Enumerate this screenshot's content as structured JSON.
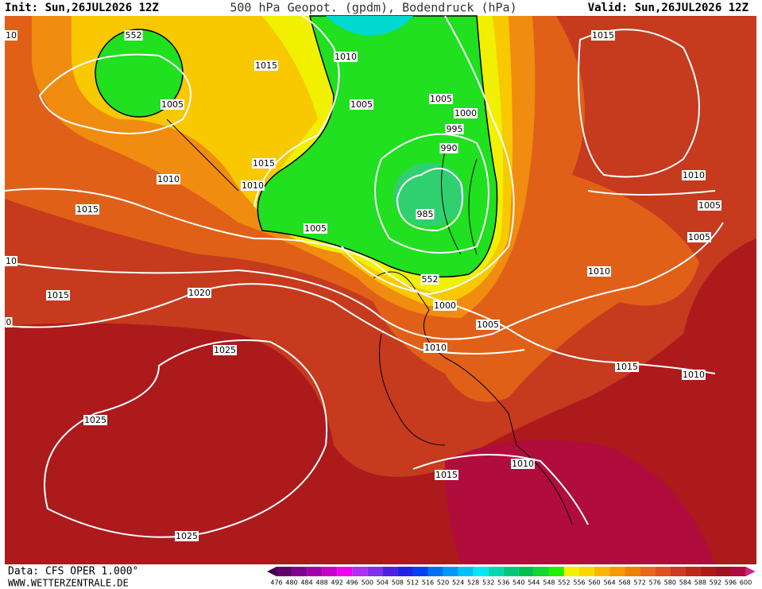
{
  "header": {
    "init": "Init: Sun,26JUL2026 12Z",
    "title": "500 hPa Geopot. (gpdm), Bodendruck (hPa)",
    "valid": "Valid: Sun,26JUL2026 12Z"
  },
  "map": {
    "contour_labels": [
      "552",
      "1015",
      "1010",
      "1005",
      "1005",
      "1005",
      "1000",
      "995",
      "990",
      "1015",
      "1010",
      "1010",
      "985",
      "1015",
      "1005",
      "552",
      "1000",
      "1005",
      "1010",
      "1020",
      "1015",
      "1025",
      "1025",
      "1010",
      "1015",
      "1025",
      "1015",
      "1010",
      "1005",
      "1005",
      "1010",
      "1015",
      "1010",
      "10",
      "10",
      "0"
    ]
  },
  "colorbar": {
    "labels": [
      476,
      480,
      484,
      488,
      492,
      496,
      500,
      504,
      508,
      512,
      516,
      520,
      524,
      528,
      532,
      536,
      540,
      544,
      548,
      552,
      556,
      560,
      564,
      568,
      572,
      576,
      580,
      584,
      588,
      592,
      596,
      600
    ],
    "colors": [
      "#400048",
      "#600068",
      "#800088",
      "#a000a8",
      "#c800c8",
      "#f000f0",
      "#b030f0",
      "#8030e8",
      "#5020e0",
      "#2020e8",
      "#0040f0",
      "#0070f0",
      "#0098f8",
      "#00c0f8",
      "#00e8f0",
      "#00d8b0",
      "#00c878",
      "#00c050",
      "#10d830",
      "#20f000",
      "#f0f000",
      "#f8d800",
      "#f8b800",
      "#f89800",
      "#f08000",
      "#e86818",
      "#e05020",
      "#d03820",
      "#c02818",
      "#b01818",
      "#a01020",
      "#b00840",
      "#d02080"
    ]
  },
  "footer": {
    "data": "Data: CFS OPER 1.000°",
    "site": "WWW.WETTERZENTRALE.DE"
  }
}
